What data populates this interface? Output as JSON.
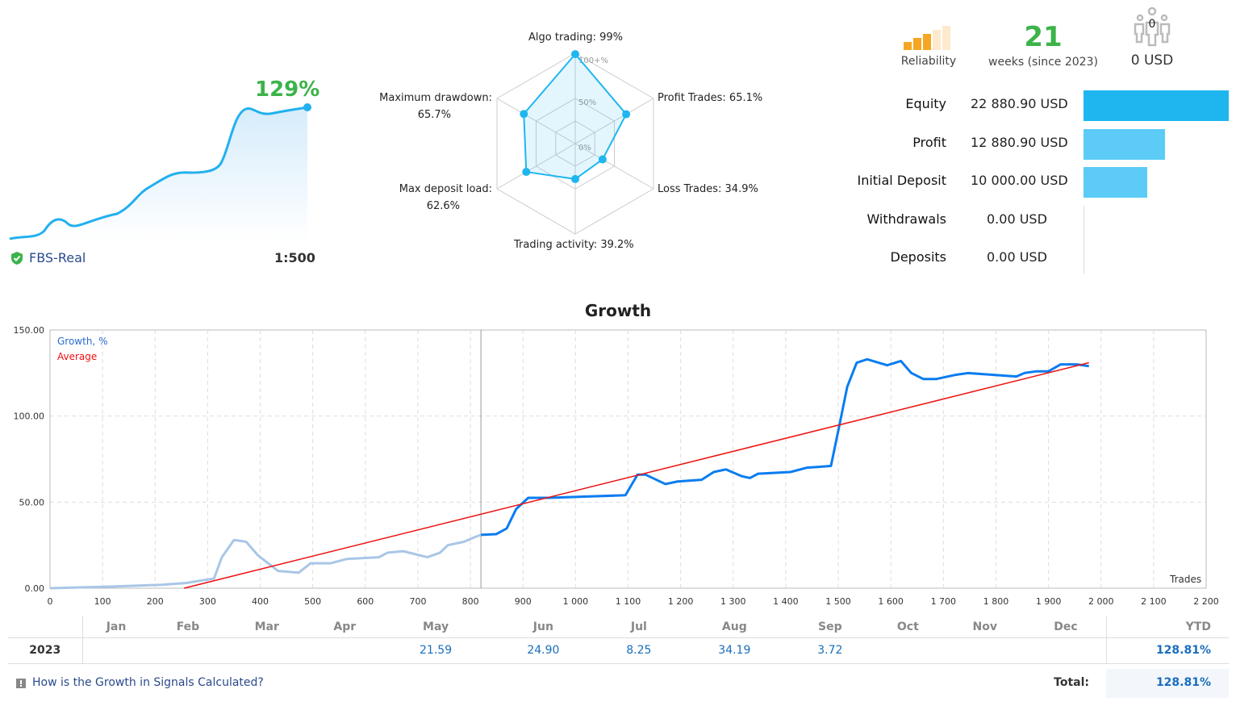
{
  "summary": {
    "growth_pct": "129%",
    "broker": "FBS-Real",
    "leverage": "1:500"
  },
  "radar": {
    "axes": [
      {
        "label": "Algo trading: 99%",
        "value": 99
      },
      {
        "label": "Profit Trades: 65.1%",
        "value": 65.1
      },
      {
        "label": "Loss Trades: 34.9%",
        "value": 34.9
      },
      {
        "label": "Trading activity: 39.2%",
        "value": 39.2
      },
      {
        "label": "Max deposit load:",
        "value_label": "62.6%",
        "value": 62.6
      },
      {
        "label": "Maximum drawdown:",
        "value_label": "65.7%",
        "value": 65.7
      }
    ],
    "ring_labels": [
      "100+%",
      "50%",
      "0%"
    ]
  },
  "header_stats": {
    "reliability_label": "Reliability",
    "reliability_level": 3,
    "reliability_max": 5,
    "weeks": "21",
    "weeks_label": "weeks (since 2023)",
    "subscribers": "0",
    "subscribers_funds": "0 USD"
  },
  "account": [
    {
      "label": "Equity",
      "value": "22 880.90 USD",
      "amount": 22880.9,
      "color": "#1fb6ef"
    },
    {
      "label": "Profit",
      "value": "12 880.90 USD",
      "amount": 12880.9,
      "color": "#5ccbf5"
    },
    {
      "label": "Initial Deposit",
      "value": "10 000.00 USD",
      "amount": 10000.0,
      "color": "#5ccbf5"
    },
    {
      "label": "Withdrawals",
      "value": "0.00 USD",
      "amount": 0
    },
    {
      "label": "Deposits",
      "value": "0.00 USD",
      "amount": 0
    }
  ],
  "chart_data": {
    "type": "line",
    "title": "Growth",
    "xlabel": "Trades",
    "xlim": [
      0,
      2200
    ],
    "ylim": [
      0,
      150
    ],
    "xticks": [
      "0",
      "100",
      "200",
      "300",
      "400",
      "500",
      "600",
      "700",
      "800",
      "900",
      "1 000",
      "1 100",
      "1 200",
      "1 300",
      "1 400",
      "1 500",
      "1 600",
      "1 700",
      "1 800",
      "1 900",
      "2 000",
      "2 100",
      "2 200"
    ],
    "yticks": [
      "0.00",
      "50.00",
      "100.00",
      "150.00"
    ],
    "months": [
      "Jan",
      "Feb",
      "Mar",
      "Apr",
      "May",
      "Jun",
      "Jul",
      "Aug",
      "Sep",
      "Oct",
      "Nov",
      "Dec"
    ],
    "grid": true,
    "legend_position": "top-left",
    "series": [
      {
        "name": "Growth, %",
        "color": "#0a7cf0",
        "history_color": "#a9c6e6",
        "history_until": 820,
        "x": [
          0,
          120,
          212,
          258,
          312,
          327,
          350,
          373,
          396,
          434,
          473,
          496,
          534,
          565,
          626,
          642,
          672,
          718,
          742,
          757,
          788,
          811,
          820,
          849,
          869,
          887,
          910,
          949,
          1033,
          1095,
          1118,
          1133,
          1171,
          1194,
          1240,
          1263,
          1286,
          1317,
          1332,
          1347,
          1409,
          1440,
          1486,
          1501,
          1517,
          1535,
          1555,
          1593,
          1619,
          1639,
          1662,
          1686,
          1724,
          1747,
          1793,
          1839,
          1854,
          1877,
          1900,
          1923,
          1954,
          1977
        ],
        "y": [
          0,
          1,
          2,
          3,
          5.6,
          18,
          28,
          27,
          19,
          10,
          9,
          14.5,
          14.5,
          17,
          18,
          20.6,
          21.5,
          18,
          20.6,
          25,
          27,
          30,
          31,
          31.4,
          34.7,
          46,
          52.5,
          52.5,
          53.4,
          54,
          66,
          66,
          60.5,
          62,
          63,
          67.5,
          69,
          65,
          64,
          66.5,
          67.5,
          70,
          71,
          93,
          117,
          131,
          133,
          129.5,
          132,
          125,
          121.5,
          121.5,
          124,
          125,
          124,
          123,
          125,
          126,
          126,
          130,
          130,
          129
        ]
      },
      {
        "name": "Average",
        "color": "#ee1111",
        "x": [
          255,
          1977
        ],
        "y": [
          0,
          131
        ]
      }
    ]
  },
  "monthly": {
    "year": "2023",
    "values": [
      "",
      "",
      "",
      "",
      "21.59",
      "24.90",
      "8.25",
      "34.19",
      "3.72",
      "",
      "",
      ""
    ],
    "ytd_label": "YTD",
    "ytd": "128.81%",
    "total_label": "Total:",
    "total": "128.81%"
  },
  "footer": {
    "link": "How is the Growth in Signals Calculated?"
  }
}
